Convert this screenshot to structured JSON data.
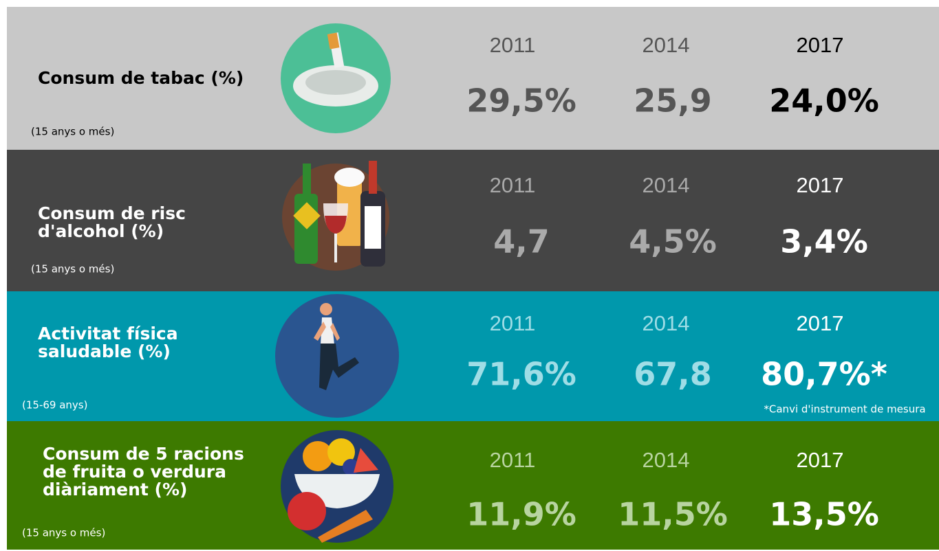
{
  "rows": [
    {
      "title_lines": [
        "Consum de tabac (%)"
      ],
      "note": "(15 anys o més)",
      "years": [
        "2011",
        "2014",
        "2017"
      ],
      "values": [
        "29,5%",
        "25,9",
        "24,0%"
      ]
    },
    {
      "title_lines": [
        "Consum de risc",
        "d'alcohol (%)"
      ],
      "note": "(15 anys o més)",
      "years": [
        "2011",
        "2014",
        "2017"
      ],
      "values": [
        "4,7",
        "4,5%",
        "3,4%"
      ]
    },
    {
      "title_lines": [
        "Activitat física",
        "saludable (%)"
      ],
      "note": "(15-69 anys)",
      "years": [
        "2011",
        "2014",
        "2017"
      ],
      "values": [
        "71,6%",
        "67,8",
        "80,7%*"
      ],
      "footnote": "*Canvi d'instrument de mesura"
    },
    {
      "title_lines": [
        "Consum de 5 racions",
        "de fruita o verdura",
        "diàriament (%)"
      ],
      "note": "(15 anys o més)",
      "years": [
        "2011",
        "2014",
        "2017"
      ],
      "values": [
        "11,9%",
        "11,5%",
        "13,5%"
      ]
    }
  ]
}
